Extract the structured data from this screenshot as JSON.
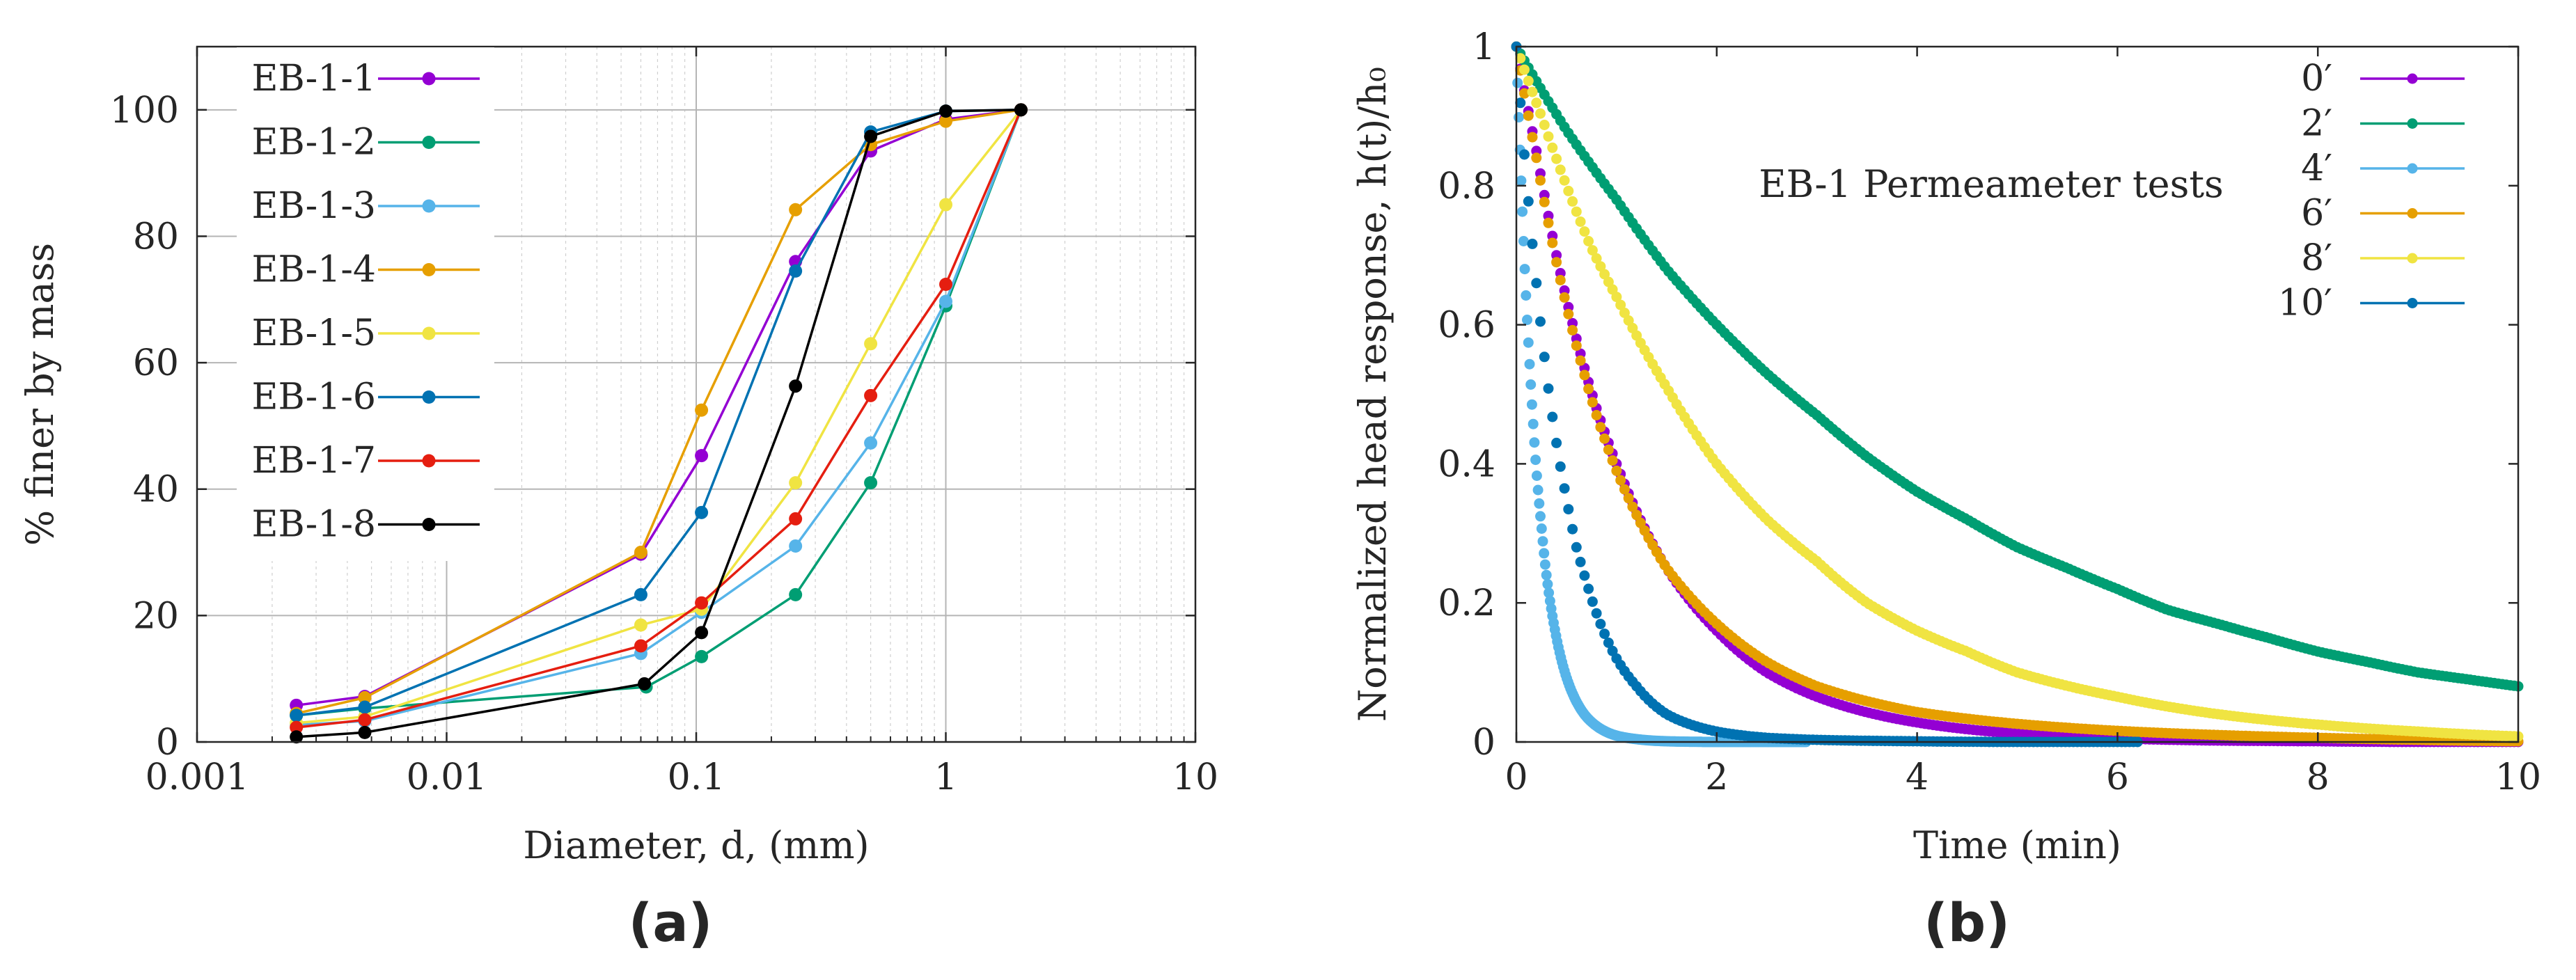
{
  "panels": [
    {
      "label": "(a)"
    },
    {
      "label": "(b)"
    }
  ],
  "chart_data": [
    {
      "type": "line",
      "xscale": "log",
      "xlabel": "Diameter, d, (mm)",
      "ylabel": "% finer by mass",
      "xlim": [
        0.001,
        10
      ],
      "ylim": [
        0,
        110
      ],
      "x_ticks": [
        0.001,
        0.01,
        0.1,
        1,
        10
      ],
      "x_tick_labels": [
        "0.001",
        "0.01",
        "0.1",
        "1",
        "10"
      ],
      "y_ticks": [
        0,
        20,
        40,
        60,
        80,
        100
      ],
      "y_tick_labels": [
        "0",
        "20",
        "40",
        "60",
        "80",
        "100"
      ],
      "grid": true,
      "legend_position": "top-left",
      "series": [
        {
          "name": "EB-1-1",
          "color": "#9400d3",
          "x": [
            0.0025,
            0.0047,
            0.06,
            0.105,
            0.25,
            0.5,
            1.0,
            2.0
          ],
          "y": [
            5.8,
            7.2,
            29.7,
            45.3,
            76.0,
            93.5,
            98.5,
            100
          ]
        },
        {
          "name": "EB-1-2",
          "color": "#009e73",
          "x": [
            0.0025,
            0.0047,
            0.063,
            0.105,
            0.25,
            0.5,
            1.0,
            2.0
          ],
          "y": [
            4.2,
            5.3,
            8.7,
            13.5,
            23.3,
            41.0,
            69.0,
            100
          ]
        },
        {
          "name": "EB-1-3",
          "color": "#56b4e9",
          "x": [
            0.0025,
            0.0047,
            0.06,
            0.105,
            0.25,
            0.5,
            1.0,
            2.0
          ],
          "y": [
            2.7,
            3.3,
            14.0,
            20.5,
            31.0,
            47.3,
            69.7,
            100
          ]
        },
        {
          "name": "EB-1-4",
          "color": "#e69f00",
          "x": [
            0.0025,
            0.0047,
            0.06,
            0.105,
            0.25,
            0.5,
            1.0,
            2.0
          ],
          "y": [
            4.5,
            7.0,
            30.0,
            52.5,
            84.2,
            94.5,
            98.2,
            100
          ]
        },
        {
          "name": "EB-1-5",
          "color": "#f0e442",
          "x": [
            0.0025,
            0.0047,
            0.06,
            0.105,
            0.25,
            0.5,
            1.0,
            2.0
          ],
          "y": [
            3.0,
            4.0,
            18.5,
            21.0,
            41.0,
            63.0,
            85.0,
            100
          ]
        },
        {
          "name": "EB-1-6",
          "color": "#0072b2",
          "x": [
            0.0025,
            0.0047,
            0.06,
            0.105,
            0.25,
            0.5,
            1.0,
            2.0
          ],
          "y": [
            4.2,
            5.5,
            23.3,
            36.3,
            74.5,
            96.5,
            99.8,
            100
          ]
        },
        {
          "name": "EB-1-7",
          "color": "#e51e10",
          "x": [
            0.0025,
            0.0047,
            0.06,
            0.105,
            0.25,
            0.5,
            1.0,
            2.0
          ],
          "y": [
            2.3,
            3.5,
            15.2,
            22.0,
            35.3,
            54.8,
            72.4,
            100
          ]
        },
        {
          "name": "EB-1-8",
          "color": "#000000",
          "x": [
            0.0025,
            0.0047,
            0.062,
            0.105,
            0.25,
            0.5,
            1.0,
            2.0
          ],
          "y": [
            0.8,
            1.5,
            9.2,
            17.3,
            56.3,
            95.8,
            99.8,
            100
          ]
        }
      ]
    },
    {
      "type": "scatter",
      "title": "EB-1 Permeameter tests",
      "xlabel": "Time (min)",
      "ylabel": "Normalized head response, h(t)/h₀",
      "xlim": [
        0,
        10
      ],
      "ylim": [
        0,
        1
      ],
      "x_ticks": [
        0,
        2,
        4,
        6,
        8,
        10
      ],
      "x_tick_labels": [
        "0",
        "2",
        "4",
        "6",
        "8",
        "10"
      ],
      "y_ticks": [
        0,
        0.2,
        0.4,
        0.6,
        0.8,
        1
      ],
      "y_tick_labels": [
        "0",
        "0.2",
        "0.4",
        "0.6",
        "0.8",
        "1"
      ],
      "grid": false,
      "legend_position": "top-right",
      "series": [
        {
          "name": "0′",
          "color": "#9400d3",
          "x": [
            0,
            0.2,
            0.4,
            0.6,
            0.8,
            1.0,
            1.5,
            2.0,
            2.5,
            3.0,
            4.0,
            5.0,
            6.0,
            7.0,
            8.0,
            9.0,
            10.0
          ],
          "y": [
            1.0,
            0.85,
            0.7,
            0.58,
            0.48,
            0.4,
            0.25,
            0.16,
            0.1,
            0.065,
            0.028,
            0.012,
            0.005,
            0.002,
            0.001,
            0.0,
            0.0
          ]
        },
        {
          "name": "2′",
          "color": "#009e73",
          "x": [
            0,
            0.5,
            1.0,
            1.5,
            2.0,
            2.5,
            3.0,
            3.5,
            4.0,
            4.5,
            5.0,
            5.5,
            6.0,
            6.5,
            7.0,
            7.5,
            8.0,
            8.5,
            9.0,
            9.5,
            10.0
          ],
          "y": [
            1.0,
            0.88,
            0.78,
            0.68,
            0.6,
            0.53,
            0.47,
            0.41,
            0.36,
            0.32,
            0.28,
            0.25,
            0.22,
            0.19,
            0.17,
            0.15,
            0.13,
            0.115,
            0.1,
            0.09,
            0.08
          ]
        },
        {
          "name": "4′",
          "color": "#56b4e9",
          "x": [
            0,
            0.05,
            0.1,
            0.15,
            0.2,
            0.25,
            0.3,
            0.35,
            0.4,
            0.5,
            0.6,
            0.7,
            0.8,
            1.0,
            1.2,
            1.5,
            2.0,
            2.5,
            2.9
          ],
          "y": [
            1.0,
            0.8,
            0.63,
            0.5,
            0.39,
            0.31,
            0.24,
            0.19,
            0.15,
            0.093,
            0.058,
            0.036,
            0.023,
            0.009,
            0.004,
            0.001,
            0.0,
            0.0,
            0.0
          ]
        },
        {
          "name": "6′",
          "color": "#e69f00",
          "x": [
            0,
            0.2,
            0.4,
            0.6,
            0.8,
            1.0,
            1.5,
            2.0,
            2.5,
            3.0,
            4.0,
            5.0,
            6.0,
            7.0,
            8.0,
            9.0,
            10.0
          ],
          "y": [
            1.0,
            0.84,
            0.69,
            0.57,
            0.47,
            0.39,
            0.25,
            0.17,
            0.115,
            0.08,
            0.043,
            0.026,
            0.016,
            0.01,
            0.006,
            0.003,
            0.001
          ]
        },
        {
          "name": "8′",
          "color": "#f0e442",
          "x": [
            0,
            0.25,
            0.5,
            0.75,
            1.0,
            1.5,
            2.0,
            2.5,
            3.0,
            3.5,
            4.0,
            4.5,
            5.0,
            6.0,
            7.0,
            8.0,
            9.0,
            10.0
          ],
          "y": [
            1.0,
            0.9,
            0.8,
            0.71,
            0.64,
            0.51,
            0.4,
            0.32,
            0.26,
            0.2,
            0.16,
            0.13,
            0.1,
            0.065,
            0.04,
            0.025,
            0.015,
            0.008
          ]
        },
        {
          "name": "10′",
          "color": "#0072b2",
          "x": [
            0,
            0.05,
            0.1,
            0.2,
            0.3,
            0.4,
            0.5,
            0.6,
            0.7,
            0.8,
            1.0,
            1.2,
            1.5,
            2.0,
            2.5,
            3.0,
            4.0,
            5.0,
            6.2
          ],
          "y": [
            1.0,
            0.9,
            0.81,
            0.66,
            0.53,
            0.43,
            0.35,
            0.28,
            0.23,
            0.185,
            0.12,
            0.08,
            0.04,
            0.015,
            0.006,
            0.003,
            0.001,
            0.0,
            0.0
          ]
        }
      ]
    }
  ]
}
